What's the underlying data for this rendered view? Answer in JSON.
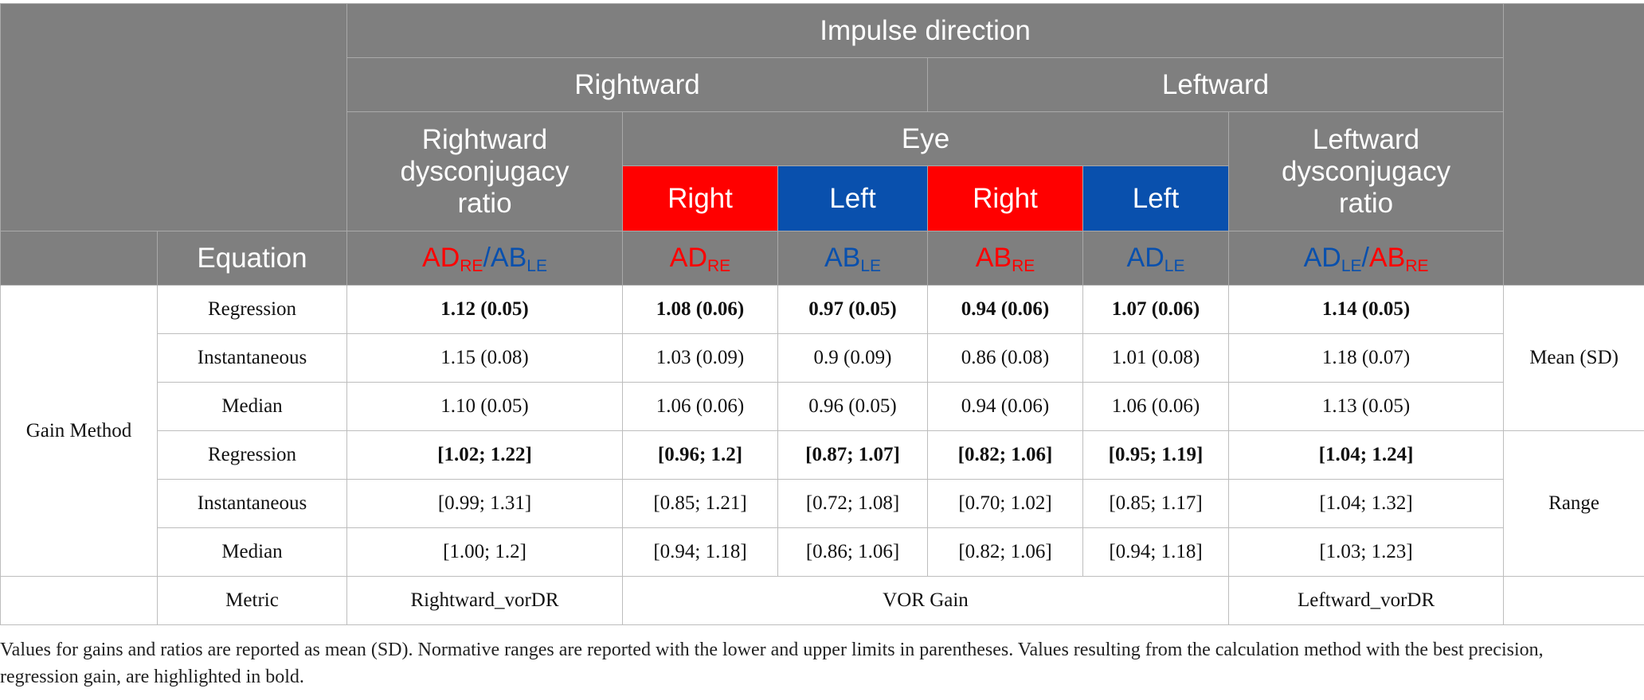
{
  "header": {
    "impulse_direction": "Impulse direction",
    "rightward": "Rightward",
    "leftward": "Leftward",
    "rightward_ratio": [
      "Rightward",
      "dysconjugacy",
      "ratio"
    ],
    "eye": "Eye",
    "leftward_ratio": [
      "Leftward",
      "dysconjugacy",
      "ratio"
    ],
    "eyes": [
      "Right",
      "Left",
      "Right",
      "Left"
    ],
    "equation_label": "Equation",
    "equations": {
      "rratio": {
        "ad": "AD",
        "ad_sub": "RE",
        "slash": "/",
        "ab": "AB",
        "ab_sub": "LE"
      },
      "c1": {
        "main": "AD",
        "sub": "RE"
      },
      "c2": {
        "main": "AB",
        "sub": "LE"
      },
      "c3": {
        "main": "AB",
        "sub": "RE"
      },
      "c4": {
        "main": "AD",
        "sub": "LE"
      },
      "lratio": {
        "ad": "AD",
        "ad_sub": "LE",
        "slash": "/",
        "ab": "AB",
        "ab_sub": "RE"
      }
    }
  },
  "body": {
    "gain_method": "Gain Method",
    "mean_sd": "Mean (SD)",
    "range": "Range",
    "rows": [
      {
        "method": "Regression",
        "values": [
          "1.12 (0.05)",
          "1.08 (0.06)",
          "0.97 (0.05)",
          "0.94 (0.06)",
          "1.07 (0.06)",
          "1.14 (0.05)"
        ]
      },
      {
        "method": "Instantaneous",
        "values": [
          "1.15 (0.08)",
          "1.03 (0.09)",
          "0.9 (0.09)",
          "0.86 (0.08)",
          "1.01 (0.08)",
          "1.18 (0.07)"
        ]
      },
      {
        "method": "Median",
        "values": [
          "1.10 (0.05)",
          "1.06 (0.06)",
          "0.96 (0.05)",
          "0.94 (0.06)",
          "1.06 (0.06)",
          "1.13 (0.05)"
        ]
      },
      {
        "method": "Regression",
        "values": [
          "[1.02; 1.22]",
          "[0.96; 1.2]",
          "[0.87; 1.07]",
          "[0.82; 1.06]",
          "[0.95; 1.19]",
          "[1.04; 1.24]"
        ]
      },
      {
        "method": "Instantaneous",
        "values": [
          "[0.99; 1.31]",
          "[0.85; 1.21]",
          "[0.72; 1.08]",
          "[0.70; 1.02]",
          "[0.85; 1.17]",
          "[1.04; 1.32]"
        ]
      },
      {
        "method": "Median",
        "values": [
          "[1.00; 1.2]",
          "[0.94; 1.18]",
          "[0.86; 1.06]",
          "[0.82; 1.06]",
          "[0.94; 1.18]",
          "[1.03; 1.23]"
        ]
      }
    ],
    "metric_label": "Metric",
    "metric_values": [
      "Rightward_vorDR",
      "VOR Gain",
      "Leftward_vorDR"
    ]
  },
  "footnote": "Values for gains and ratios are reported as mean (SD). Normative ranges are reported with the lower and upper limits in parentheses. Values resulting from the calculation method with the best precision, regression gain, are highlighted in bold.",
  "colors": {
    "header_gray": "#7f7f7f",
    "right_eye_red": "#ff0000",
    "left_eye_blue": "#0950ad"
  }
}
